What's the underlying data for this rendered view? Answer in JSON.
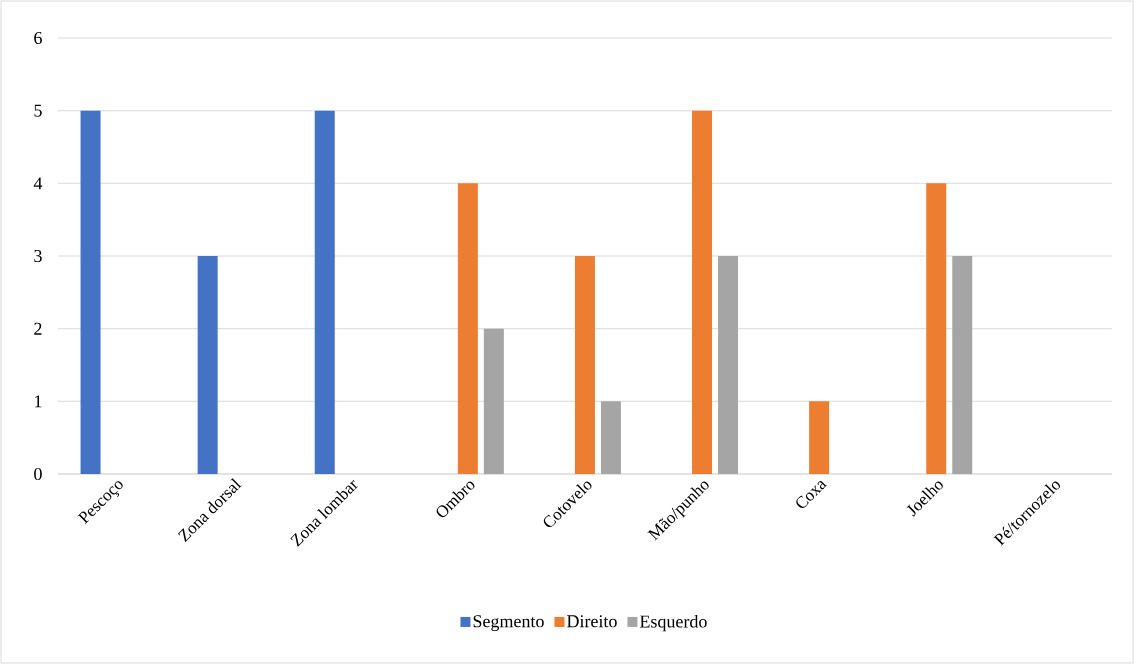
{
  "chart_data": {
    "type": "bar",
    "categories": [
      "Pescoço",
      "Zona dorsal",
      "Zona lombar",
      "Ombro",
      "Cotovelo",
      "Mão/punho",
      "Coxa",
      "Joelho",
      "Pé/tornozelo"
    ],
    "series": [
      {
        "name": "Segmento",
        "color": "#4472c4",
        "values": [
          5,
          3,
          5,
          0,
          0,
          0,
          0,
          0,
          0
        ]
      },
      {
        "name": "Direito",
        "color": "#ed7d31",
        "values": [
          0,
          0,
          0,
          4,
          3,
          5,
          1,
          4,
          0
        ]
      },
      {
        "name": "Esquerdo",
        "color": "#a5a5a5",
        "values": [
          0,
          0,
          0,
          2,
          1,
          3,
          0,
          3,
          0
        ]
      }
    ],
    "ylim": [
      0,
      6
    ],
    "yticks": [
      0,
      1,
      2,
      3,
      4,
      5,
      6
    ],
    "grid": "y",
    "legend": "bottom"
  }
}
